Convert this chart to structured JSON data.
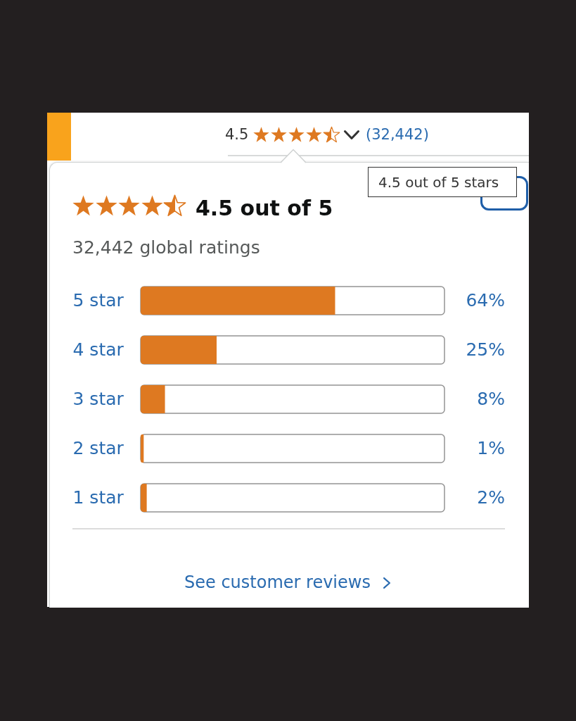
{
  "chart_data": {
    "type": "bar",
    "orientation": "horizontal",
    "title": "4.5 out of 5",
    "subtitle": "32,442 global ratings",
    "categories": [
      "5 star",
      "4 star",
      "3 star",
      "2 star",
      "1 star"
    ],
    "values": [
      64,
      25,
      8,
      1,
      2
    ],
    "value_labels": [
      "64%",
      "25%",
      "8%",
      "1%",
      "2%"
    ],
    "color": "#de7921",
    "xlim": [
      0,
      100
    ],
    "tick_labels": "y",
    "annotations": [
      "4.5",
      "(32,442)",
      "4.5 out of 5 stars",
      "See customer reviews"
    ]
  }
}
